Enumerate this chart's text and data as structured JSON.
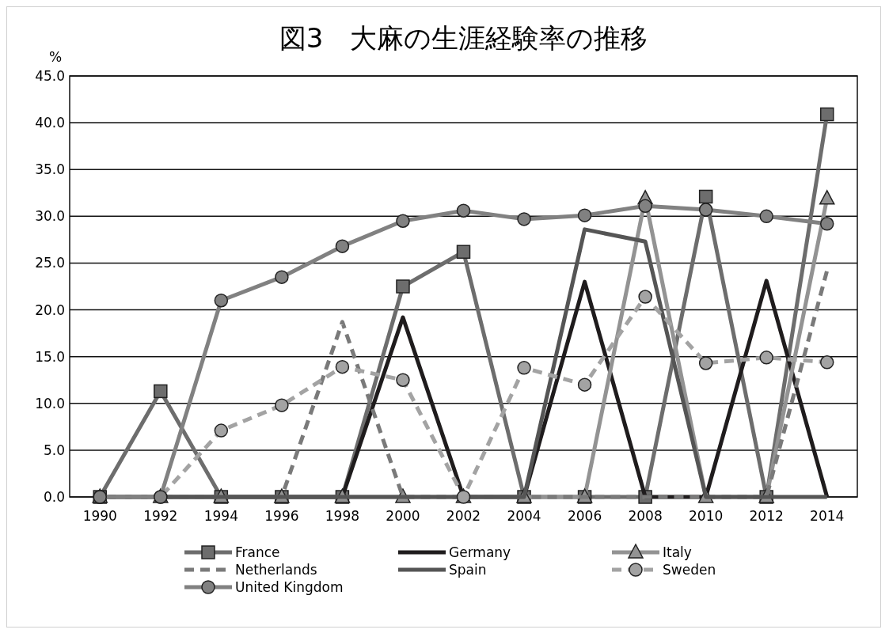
{
  "chart_data": {
    "type": "line",
    "title": "図3　大麻の生涯経験率の推移",
    "ylabel": "%",
    "categories": [
      "1990",
      "1992",
      "1994",
      "1996",
      "1998",
      "2000",
      "2002",
      "2004",
      "2006",
      "2008",
      "2010",
      "2012",
      "2014"
    ],
    "ylim": [
      0,
      45
    ],
    "yticks": [
      {
        "value": 0,
        "label": "0.0"
      },
      {
        "value": 5,
        "label": "5.0"
      },
      {
        "value": 10,
        "label": "10.0"
      },
      {
        "value": 15,
        "label": "15.0"
      },
      {
        "value": 20,
        "label": "20.0"
      },
      {
        "value": 25,
        "label": "25.0"
      },
      {
        "value": 30,
        "label": "30.0"
      },
      {
        "value": 35,
        "label": "35.0"
      },
      {
        "value": 40,
        "label": "40.0"
      },
      {
        "value": 45,
        "label": "45.0"
      }
    ],
    "grid": "y",
    "legend": "bottom",
    "series": [
      {
        "name": "France",
        "color": "#6d6d6d",
        "marker": "square",
        "line_style": "solid",
        "values": [
          0,
          11.3,
          0,
          0,
          0,
          22.5,
          26.2,
          0,
          0,
          0,
          32.1,
          0,
          40.9
        ]
      },
      {
        "name": "Germany",
        "color": "#1f1c1d",
        "line_style": "solid",
        "values": [
          0,
          0,
          0,
          0,
          0,
          19.2,
          0,
          0,
          23.0,
          0,
          0,
          23.1,
          0
        ]
      },
      {
        "name": "Italy",
        "color": "#939393",
        "marker": "triangle",
        "line_style": "solid",
        "values": [
          0,
          0,
          0,
          0,
          0,
          0,
          0,
          0,
          0,
          31.9,
          0,
          0,
          31.9
        ]
      },
      {
        "name": "Netherlands",
        "color": "#7a7a7a",
        "line_style": "dashed",
        "values": [
          0,
          0,
          0,
          0,
          18.7,
          0,
          0,
          0,
          0,
          0,
          0,
          0,
          24.2
        ]
      },
      {
        "name": "Spain",
        "color": "#555555",
        "line_style": "solid",
        "values": [
          0,
          0,
          0,
          0,
          0,
          0,
          0,
          0,
          28.6,
          27.3,
          0,
          0,
          0
        ]
      },
      {
        "name": "Sweden",
        "color": "#a3a3a3",
        "marker": "circle",
        "line_style": "dashed",
        "values": [
          0,
          0,
          7.1,
          9.8,
          13.9,
          12.5,
          0,
          13.8,
          12.0,
          21.4,
          14.3,
          14.9,
          14.4
        ]
      },
      {
        "name": "United Kingdom",
        "color": "#818181",
        "marker": "circle",
        "line_style": "solid",
        "values": [
          0,
          0,
          21.0,
          23.5,
          26.8,
          29.5,
          30.6,
          29.7,
          30.1,
          31.1,
          30.7,
          30.0,
          29.2
        ]
      }
    ]
  }
}
